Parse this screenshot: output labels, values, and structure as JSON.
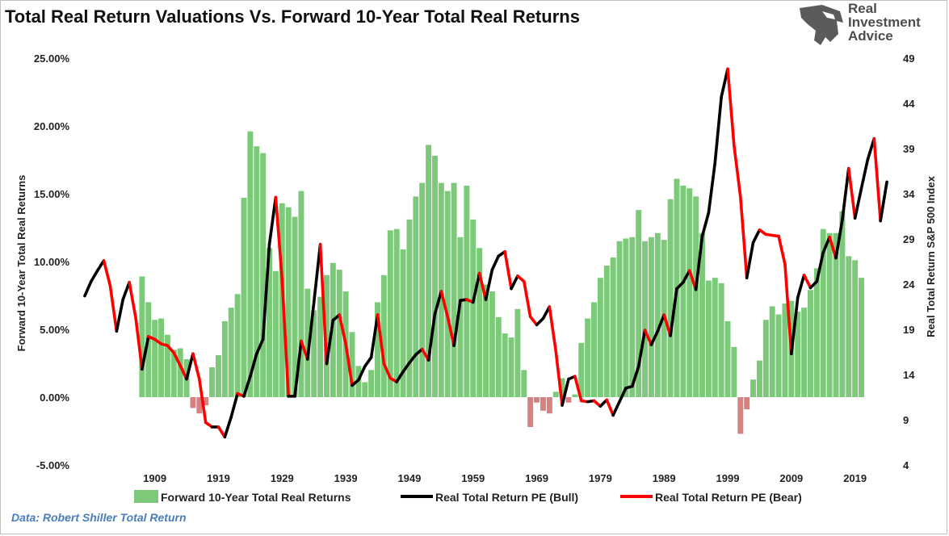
{
  "title": "Total Real Return Valuations Vs. Forward 10-Year Total Real Returns",
  "logo": {
    "icon": "eagle-icon",
    "line1": "Real",
    "line2": "Investment",
    "line3": "Advice"
  },
  "source": "Data: Robert Shiller Total Return",
  "colors": {
    "bar_positive": "#7cc97a",
    "bar_negative": "#d98080",
    "bull_line": "#000000",
    "bear_line": "#ff0000"
  },
  "chart_data": {
    "type": "bar",
    "title": "Total Real Return Valuations Vs. Forward 10-Year Total Real Returns",
    "ylabel": "Forward 10-Year Total Real Returns",
    "y2label": "Real Total Return S&P 500 Index",
    "ylim": [
      -0.05,
      0.25
    ],
    "y_ticks": [
      "25.00%",
      "20.00%",
      "15.00%",
      "10.00%",
      "5.00%",
      "0.00%",
      "-5.00%"
    ],
    "y2lim": [
      4,
      49
    ],
    "y2_ticks": [
      "49",
      "44",
      "39",
      "34",
      "29",
      "24",
      "19",
      "14",
      "9",
      "4"
    ],
    "xlim": [
      1897.5,
      2024.5
    ],
    "x_ticks": [
      "1909",
      "1919",
      "1929",
      "1939",
      "1949",
      "1959",
      "1969",
      "1979",
      "1989",
      "1999",
      "2009",
      "2019"
    ],
    "grid": false,
    "legend_position": "bottom",
    "bars": {
      "name": "Forward 10-Year Total Real Returns",
      "x_start": 1907,
      "values": [
        0.089,
        0.07,
        0.057,
        0.058,
        0.046,
        0.035,
        0.036,
        0.028,
        -0.008,
        -0.012,
        -0.006,
        0.022,
        0.031,
        0.056,
        0.066,
        0.076,
        0.147,
        0.196,
        0.185,
        0.18,
        0.11,
        0.093,
        0.143,
        0.14,
        0.133,
        0.152,
        0.08,
        0.064,
        0.074,
        0.09,
        0.099,
        0.094,
        0.078,
        0.048,
        0.023,
        0.011,
        0.02,
        0.07,
        0.09,
        0.123,
        0.124,
        0.109,
        0.131,
        0.148,
        0.158,
        0.186,
        0.178,
        0.158,
        0.152,
        0.158,
        0.118,
        0.156,
        0.131,
        0.11,
        0.083,
        0.078,
        0.059,
        0.047,
        0.044,
        0.065,
        0.02,
        -0.022,
        -0.004,
        -0.01,
        -0.012,
        0.004,
        0.014,
        -0.004,
        0.002,
        0.04,
        0.058,
        0.07,
        0.088,
        0.097,
        0.103,
        0.115,
        0.117,
        0.118,
        0.138,
        0.115,
        0.118,
        0.121,
        0.116,
        0.146,
        0.161,
        0.156,
        0.154,
        0.148,
        0.121,
        0.086,
        0.088,
        0.084,
        0.056,
        0.037,
        -0.027,
        -0.009,
        0.013,
        0.027,
        0.057,
        0.067,
        0.061,
        0.069,
        0.071,
        0.063,
        0.066,
        0.079,
        0.095,
        0.124,
        0.121,
        0.121,
        0.137,
        0.104,
        0.101,
        0.088
      ]
    },
    "line_x_start": 1898,
    "line_values": [
      22.7,
      24.3,
      25.5,
      26.6,
      23.8,
      18.8,
      22.3,
      24.2,
      20.3,
      14.6,
      18.2,
      17.9,
      17.4,
      17.2,
      16.4,
      15.0,
      13.5,
      16.3,
      13.5,
      8.7,
      8.2,
      8.2,
      7.1,
      9.3,
      11.9,
      11.6,
      13.8,
      16.3,
      17.9,
      28.4,
      33.6,
      24.5,
      11.6,
      11.6,
      17.7,
      15.7,
      22.0,
      28.4,
      15.2,
      20.0,
      20.6,
      17.4,
      12.8,
      13.4,
      14.9,
      15.9,
      20.6,
      15.2,
      13.6,
      13.2,
      14.3,
      15.3,
      16.2,
      16.8,
      15.6,
      20.7,
      23.2,
      20.4,
      17.2,
      22.2,
      22.3,
      22.0,
      25.2,
      22.3,
      25.6,
      27.1,
      27.6,
      23.5,
      24.9,
      24.3,
      20.4,
      19.5,
      20.2,
      21.5,
      16.6,
      10.6,
      13.5,
      13.8,
      11.1,
      11.0,
      11.1,
      10.5,
      11.2,
      9.5,
      11.0,
      12.5,
      12.7,
      14.9,
      18.9,
      17.3,
      18.8,
      20.6,
      18.3,
      23.5,
      24.2,
      25.5,
      23.4,
      29.3,
      31.9,
      37.4,
      44.7,
      47.8,
      39.3,
      33.7,
      24.7,
      28.6,
      30.0,
      29.5,
      29.4,
      29.3,
      26.2,
      16.3,
      22.5,
      25.0,
      23.6,
      24.3,
      27.5,
      29.2,
      26.9,
      31.1,
      36.8,
      31.3,
      34.6,
      37.8,
      40.1,
      31.0,
      35.3
    ],
    "series": [
      {
        "name": "Forward 10-Year Total Real Returns",
        "type": "bar",
        "axis": "left"
      },
      {
        "name": "Real Total Return PE (Bull)",
        "type": "line",
        "axis": "right"
      },
      {
        "name": "Real Total Return PE (Bear)",
        "type": "line",
        "axis": "right"
      }
    ]
  }
}
